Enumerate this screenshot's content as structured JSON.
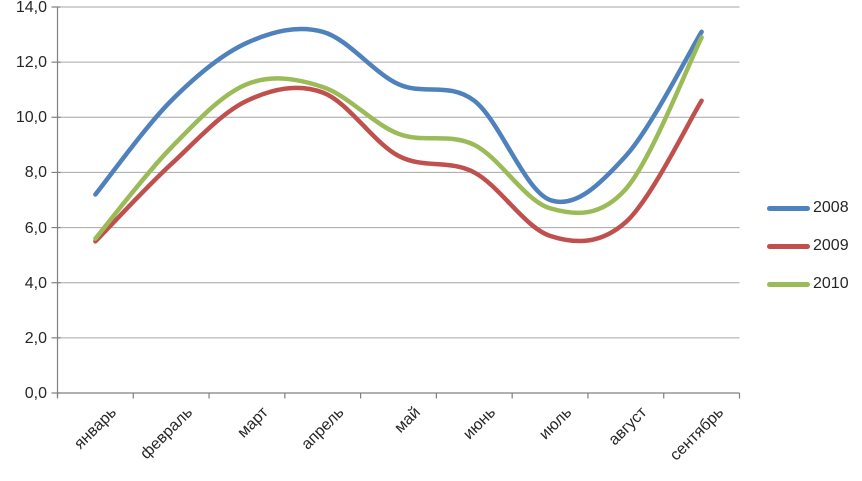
{
  "chart_data": {
    "type": "line",
    "smooth": true,
    "title": "",
    "xlabel": "",
    "ylabel": "",
    "categories": [
      "январь",
      "февраль",
      "март",
      "апрель",
      "май",
      "июнь",
      "июль",
      "август",
      "сентябрь"
    ],
    "series": [
      {
        "name": "2008",
        "color": "#4F81BD",
        "values": [
          7.2,
          10.6,
          12.7,
          13.1,
          11.2,
          10.6,
          7.0,
          8.6,
          13.1
        ]
      },
      {
        "name": "2009",
        "color": "#C0504D",
        "values": [
          5.5,
          8.3,
          10.6,
          10.9,
          8.6,
          8.0,
          5.7,
          6.2,
          10.6
        ]
      },
      {
        "name": "2010",
        "color": "#9BBB59",
        "values": [
          5.6,
          8.9,
          11.2,
          11.1,
          9.4,
          9.0,
          6.7,
          7.4,
          12.9
        ]
      }
    ],
    "ylim": [
      0,
      14
    ],
    "ytick_step": 2,
    "ytick_labels": [
      "0,0",
      "2,0",
      "4,0",
      "6,0",
      "8,0",
      "10,0",
      "12,0",
      "14,0"
    ],
    "grid": true,
    "legend_position": "right"
  },
  "colors": {
    "gridline": "#A6A6A6",
    "axis": "#808080",
    "text": "#262626",
    "background": "#FFFFFF"
  }
}
